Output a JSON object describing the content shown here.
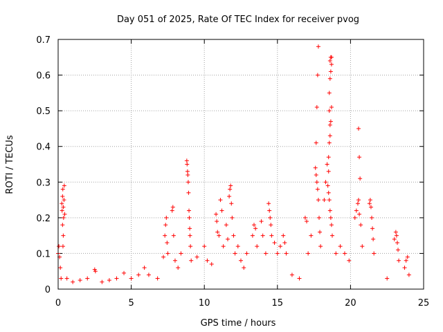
{
  "chart_data": {
    "type": "scatter",
    "title": "Day 051 of 2025, Rate Of TEC Index for receiver pvog",
    "xlabel": "GPS time / hours",
    "ylabel": "ROTI / TECUs",
    "xlim": [
      0,
      25
    ],
    "ylim": [
      0,
      0.7
    ],
    "x_ticks": [
      "0",
      "5",
      "10",
      "15",
      "20",
      "25"
    ],
    "y_ticks": [
      "0",
      "0.1",
      "0.2",
      "0.3",
      "0.4",
      "0.5",
      "0.6",
      "0.7"
    ],
    "grid": true,
    "marker": "plus",
    "colors": {
      "series": "#ff0000",
      "grid": "#a0a0a0",
      "frame": "#000000"
    },
    "series": [
      {
        "name": "",
        "points": [
          [
            0.0,
            0.1
          ],
          [
            0.05,
            0.12
          ],
          [
            0.1,
            0.09
          ],
          [
            0.15,
            0.06
          ],
          [
            0.2,
            0.03
          ],
          [
            0.25,
            0.24
          ],
          [
            0.27,
            0.22
          ],
          [
            0.3,
            0.26
          ],
          [
            0.32,
            0.28
          ],
          [
            0.35,
            0.23
          ],
          [
            0.37,
            0.2
          ],
          [
            0.4,
            0.25
          ],
          [
            0.42,
            0.29
          ],
          [
            0.45,
            0.21
          ],
          [
            0.3,
            0.18
          ],
          [
            0.35,
            0.15
          ],
          [
            0.33,
            0.12
          ],
          [
            0.6,
            0.03
          ],
          [
            1.0,
            0.02
          ],
          [
            1.5,
            0.025
          ],
          [
            2.0,
            0.03
          ],
          [
            2.5,
            0.055
          ],
          [
            2.55,
            0.05
          ],
          [
            3.0,
            0.02
          ],
          [
            3.5,
            0.025
          ],
          [
            4.0,
            0.03
          ],
          [
            4.5,
            0.045
          ],
          [
            5.0,
            0.03
          ],
          [
            5.5,
            0.04
          ],
          [
            5.9,
            0.06
          ],
          [
            6.2,
            0.04
          ],
          [
            6.8,
            0.03
          ],
          [
            7.2,
            0.09
          ],
          [
            7.3,
            0.15
          ],
          [
            7.35,
            0.18
          ],
          [
            7.4,
            0.2
          ],
          [
            7.45,
            0.13
          ],
          [
            7.5,
            0.1
          ],
          [
            7.8,
            0.22
          ],
          [
            7.85,
            0.23
          ],
          [
            7.9,
            0.15
          ],
          [
            8.0,
            0.08
          ],
          [
            8.2,
            0.06
          ],
          [
            8.4,
            0.1
          ],
          [
            8.8,
            0.36
          ],
          [
            8.82,
            0.35
          ],
          [
            8.85,
            0.33
          ],
          [
            8.87,
            0.32
          ],
          [
            8.9,
            0.3
          ],
          [
            8.92,
            0.27
          ],
          [
            8.95,
            0.22
          ],
          [
            8.97,
            0.2
          ],
          [
            9.0,
            0.17
          ],
          [
            9.02,
            0.15
          ],
          [
            9.05,
            0.12
          ],
          [
            9.1,
            0.08
          ],
          [
            9.5,
            0.09
          ],
          [
            10.0,
            0.12
          ],
          [
            10.2,
            0.08
          ],
          [
            10.5,
            0.07
          ],
          [
            10.8,
            0.21
          ],
          [
            10.85,
            0.19
          ],
          [
            10.9,
            0.16
          ],
          [
            11.0,
            0.15
          ],
          [
            11.1,
            0.25
          ],
          [
            11.2,
            0.22
          ],
          [
            11.3,
            0.12
          ],
          [
            11.5,
            0.18
          ],
          [
            11.6,
            0.14
          ],
          [
            11.7,
            0.26
          ],
          [
            11.75,
            0.28
          ],
          [
            11.8,
            0.29
          ],
          [
            11.85,
            0.24
          ],
          [
            11.9,
            0.2
          ],
          [
            12.0,
            0.15
          ],
          [
            12.1,
            0.1
          ],
          [
            12.3,
            0.12
          ],
          [
            12.5,
            0.08
          ],
          [
            12.7,
            0.06
          ],
          [
            12.9,
            0.1
          ],
          [
            13.3,
            0.15
          ],
          [
            13.4,
            0.18
          ],
          [
            13.5,
            0.17
          ],
          [
            13.6,
            0.12
          ],
          [
            13.9,
            0.19
          ],
          [
            14.0,
            0.15
          ],
          [
            14.2,
            0.1
          ],
          [
            14.4,
            0.24
          ],
          [
            14.45,
            0.22
          ],
          [
            14.5,
            0.2
          ],
          [
            14.55,
            0.18
          ],
          [
            14.6,
            0.15
          ],
          [
            14.8,
            0.13
          ],
          [
            15.0,
            0.1
          ],
          [
            15.2,
            0.12
          ],
          [
            15.4,
            0.15
          ],
          [
            15.5,
            0.13
          ],
          [
            15.6,
            0.1
          ],
          [
            16.0,
            0.04
          ],
          [
            16.5,
            0.03
          ],
          [
            16.9,
            0.2
          ],
          [
            17.0,
            0.19
          ],
          [
            17.1,
            0.1
          ],
          [
            17.3,
            0.15
          ],
          [
            17.6,
            0.34
          ],
          [
            17.65,
            0.32
          ],
          [
            17.7,
            0.3
          ],
          [
            17.75,
            0.28
          ],
          [
            17.8,
            0.25
          ],
          [
            17.85,
            0.2
          ],
          [
            17.9,
            0.16
          ],
          [
            17.95,
            0.12
          ],
          [
            17.65,
            0.41
          ],
          [
            17.7,
            0.51
          ],
          [
            17.75,
            0.6
          ],
          [
            17.8,
            0.68
          ],
          [
            18.2,
            0.25
          ],
          [
            18.3,
            0.3
          ],
          [
            18.4,
            0.35
          ],
          [
            18.45,
            0.29
          ],
          [
            18.5,
            0.27
          ],
          [
            18.55,
            0.25
          ],
          [
            18.6,
            0.22
          ],
          [
            18.65,
            0.2
          ],
          [
            18.7,
            0.18
          ],
          [
            18.75,
            0.15
          ],
          [
            18.5,
            0.37
          ],
          [
            18.55,
            0.41
          ],
          [
            18.6,
            0.46
          ],
          [
            18.65,
            0.47
          ],
          [
            18.7,
            0.51
          ],
          [
            18.55,
            0.55
          ],
          [
            18.6,
            0.59
          ],
          [
            18.65,
            0.61
          ],
          [
            18.7,
            0.63
          ],
          [
            18.6,
            0.64
          ],
          [
            18.65,
            0.65
          ],
          [
            18.7,
            0.65
          ],
          [
            18.6,
            0.43
          ],
          [
            18.55,
            0.5
          ],
          [
            18.5,
            0.33
          ],
          [
            19.0,
            0.1
          ],
          [
            19.3,
            0.12
          ],
          [
            19.6,
            0.1
          ],
          [
            19.9,
            0.08
          ],
          [
            20.3,
            0.2
          ],
          [
            20.4,
            0.22
          ],
          [
            20.5,
            0.24
          ],
          [
            20.55,
            0.25
          ],
          [
            20.6,
            0.21
          ],
          [
            20.7,
            0.18
          ],
          [
            20.8,
            0.12
          ],
          [
            20.65,
            0.31
          ],
          [
            20.6,
            0.37
          ],
          [
            20.55,
            0.45
          ],
          [
            21.3,
            0.24
          ],
          [
            21.35,
            0.25
          ],
          [
            21.4,
            0.23
          ],
          [
            21.45,
            0.2
          ],
          [
            21.5,
            0.17
          ],
          [
            21.55,
            0.14
          ],
          [
            21.6,
            0.1
          ],
          [
            22.5,
            0.03
          ],
          [
            23.0,
            0.14
          ],
          [
            23.1,
            0.16
          ],
          [
            23.15,
            0.15
          ],
          [
            23.2,
            0.13
          ],
          [
            23.25,
            0.11
          ],
          [
            23.3,
            0.08
          ],
          [
            23.7,
            0.06
          ],
          [
            23.8,
            0.08
          ],
          [
            23.9,
            0.09
          ],
          [
            24.0,
            0.04
          ]
        ]
      }
    ]
  }
}
